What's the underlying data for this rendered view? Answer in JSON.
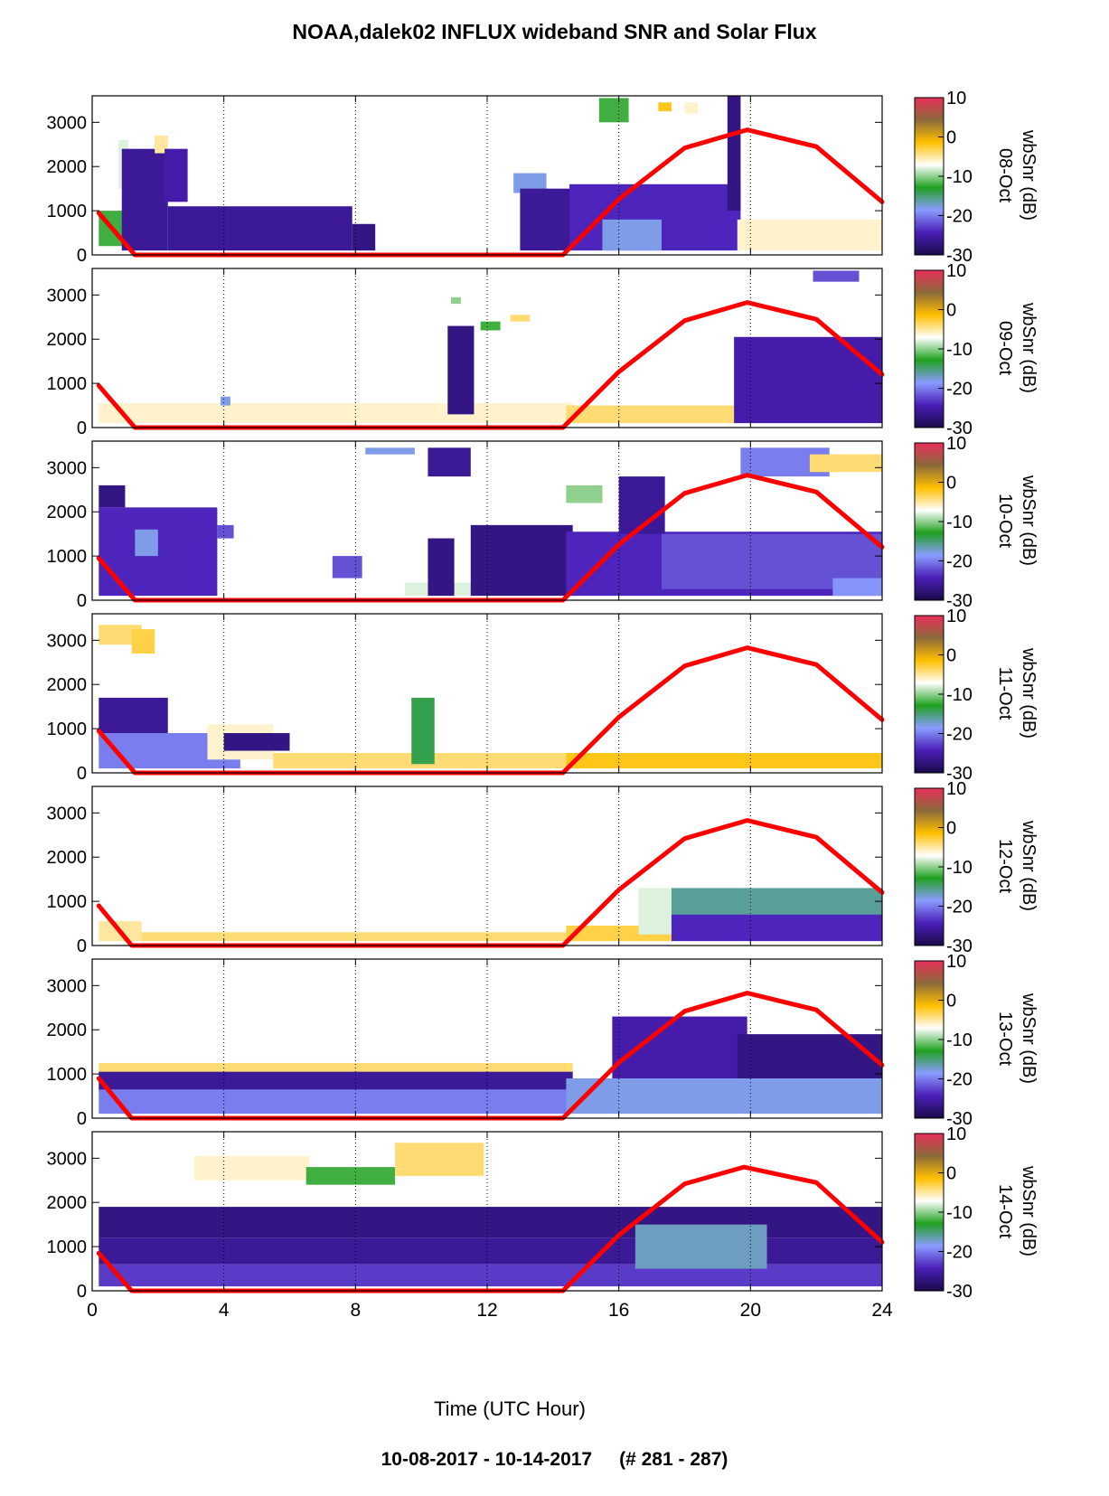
{
  "title": "NOAA,dalek02 INFLUX wideband SNR and Solar Flux",
  "footer": {
    "date_range": "10-08-2017 - 10-14-2017",
    "record_range": "(# 281 - 287)"
  },
  "chart_data": {
    "type": "heatmap",
    "xlabel": "Time (UTC Hour)",
    "xlim": [
      0,
      24
    ],
    "x_ticks": [
      0,
      4,
      8,
      12,
      16,
      20,
      24
    ],
    "y_ticks": [
      0,
      1000,
      2000,
      3000
    ],
    "ylim": [
      0,
      3600
    ],
    "grid": "dotted vertical at 4,8,12,16,20",
    "colorbar": {
      "label": "wbSnr (dB)",
      "range": [
        -30,
        10
      ],
      "ticks": [
        10,
        0,
        -10,
        -20,
        -30
      ],
      "colors": [
        "#1a0a4a",
        "#4b1fb8",
        "#8a9cff",
        "#1fa01f",
        "#ffffff",
        "#ffc000",
        "#8b6a3a",
        "#e8305a"
      ]
    },
    "solar_flux_color": "#ff0000",
    "panels": [
      {
        "label": "08-Oct",
        "solar_flux": [
          [
            0.2,
            950
          ],
          [
            1.3,
            0
          ],
          [
            14.3,
            0
          ],
          [
            16,
            1260
          ],
          [
            18,
            2420
          ],
          [
            19.9,
            2830
          ],
          [
            22,
            2450
          ],
          [
            24,
            1200
          ]
        ],
        "snr_regions": [
          {
            "x": [
              0.2,
              1.0
            ],
            "y": [
              200,
              1000
            ],
            "snr": -12
          },
          {
            "x": [
              0.8,
              1.1
            ],
            "y": [
              1500,
              2600
            ],
            "snr": -8
          },
          {
            "x": [
              0.9,
              2.3
            ],
            "y": [
              100,
              2400
            ],
            "snr": -26
          },
          {
            "x": [
              1.9,
              2.3
            ],
            "y": [
              2300,
              2700
            ],
            "snr": -5
          },
          {
            "x": [
              2.2,
              2.9
            ],
            "y": [
              1200,
              2400
            ],
            "snr": -25
          },
          {
            "x": [
              2.3,
              7.9
            ],
            "y": [
              100,
              1100
            ],
            "snr": -26
          },
          {
            "x": [
              7.9,
              8.6
            ],
            "y": [
              100,
              700
            ],
            "snr": -27
          },
          {
            "x": [
              12.8,
              13.8
            ],
            "y": [
              1400,
              1850
            ],
            "snr": -18
          },
          {
            "x": [
              13.0,
              14.6
            ],
            "y": [
              100,
              1500
            ],
            "snr": -26
          },
          {
            "x": [
              14.5,
              19.7
            ],
            "y": [
              100,
              1600
            ],
            "snr": -24
          },
          {
            "x": [
              15.5,
              17.3
            ],
            "y": [
              100,
              800
            ],
            "snr": -18
          },
          {
            "x": [
              15.4,
              16.3
            ],
            "y": [
              3000,
              3550
            ],
            "snr": -12
          },
          {
            "x": [
              17.2,
              17.6
            ],
            "y": [
              3250,
              3450
            ],
            "snr": -2
          },
          {
            "x": [
              18.0,
              18.4
            ],
            "y": [
              3200,
              3450
            ],
            "snr": -6
          },
          {
            "x": [
              19.3,
              19.7
            ],
            "y": [
              1000,
              3600
            ],
            "snr": -27
          },
          {
            "x": [
              19.6,
              24
            ],
            "y": [
              100,
              800
            ],
            "snr": -6
          }
        ]
      },
      {
        "label": "09-Oct",
        "solar_flux": [
          [
            0.2,
            950
          ],
          [
            1.3,
            0
          ],
          [
            14.3,
            0
          ],
          [
            16,
            1260
          ],
          [
            18,
            2420
          ],
          [
            19.9,
            2830
          ],
          [
            22,
            2450
          ],
          [
            24,
            1200
          ]
        ],
        "snr_regions": [
          {
            "x": [
              0.2,
              14.6
            ],
            "y": [
              100,
              550
            ],
            "snr": -6
          },
          {
            "x": [
              3.9,
              4.2
            ],
            "y": [
              500,
              700
            ],
            "snr": -18
          },
          {
            "x": [
              10.8,
              11.6
            ],
            "y": [
              300,
              2300
            ],
            "snr": -27
          },
          {
            "x": [
              10.9,
              11.2
            ],
            "y": [
              2800,
              2950
            ],
            "snr": -10
          },
          {
            "x": [
              11.8,
              12.4
            ],
            "y": [
              2200,
              2400
            ],
            "snr": -12
          },
          {
            "x": [
              12.7,
              13.3
            ],
            "y": [
              2400,
              2550
            ],
            "snr": -4
          },
          {
            "x": [
              14.4,
              19.6
            ],
            "y": [
              100,
              500
            ],
            "snr": -4
          },
          {
            "x": [
              19.5,
              24
            ],
            "y": [
              100,
              2050
            ],
            "snr": -25
          },
          {
            "x": [
              21.9,
              23.3
            ],
            "y": [
              3300,
              3550
            ],
            "snr": -22
          }
        ]
      },
      {
        "label": "10-Oct",
        "solar_flux": [
          [
            0.2,
            950
          ],
          [
            1.3,
            0
          ],
          [
            14.3,
            0
          ],
          [
            16,
            1260
          ],
          [
            18,
            2420
          ],
          [
            19.9,
            2830
          ],
          [
            22,
            2450
          ],
          [
            24,
            1200
          ]
        ],
        "snr_regions": [
          {
            "x": [
              0.2,
              3.8
            ],
            "y": [
              100,
              2100
            ],
            "snr": -24
          },
          {
            "x": [
              0.2,
              1.0
            ],
            "y": [
              2100,
              2600
            ],
            "snr": -27
          },
          {
            "x": [
              1.3,
              2.0
            ],
            "y": [
              1000,
              1600
            ],
            "snr": -18
          },
          {
            "x": [
              3.8,
              4.3
            ],
            "y": [
              1400,
              1700
            ],
            "snr": -22
          },
          {
            "x": [
              7.3,
              8.2
            ],
            "y": [
              500,
              1000
            ],
            "snr": -22
          },
          {
            "x": [
              9.5,
              13.9
            ],
            "y": [
              100,
              400
            ],
            "snr": -8
          },
          {
            "x": [
              10.2,
              11.0
            ],
            "y": [
              100,
              1400
            ],
            "snr": -27
          },
          {
            "x": [
              10.2,
              11.5
            ],
            "y": [
              2800,
              3450
            ],
            "snr": -26
          },
          {
            "x": [
              11.5,
              14.6
            ],
            "y": [
              100,
              1700
            ],
            "snr": -27
          },
          {
            "x": [
              8.3,
              9.8
            ],
            "y": [
              3300,
              3450
            ],
            "snr": -18
          },
          {
            "x": [
              14.4,
              24
            ],
            "y": [
              100,
              1550
            ],
            "snr": -24
          },
          {
            "x": [
              14.4,
              15.5
            ],
            "y": [
              2200,
              2600
            ],
            "snr": -10
          },
          {
            "x": [
              16.0,
              17.4
            ],
            "y": [
              1500,
              2800
            ],
            "snr": -26
          },
          {
            "x": [
              17.3,
              24
            ],
            "y": [
              250,
              1500
            ],
            "snr": -22
          },
          {
            "x": [
              19.7,
              22.4
            ],
            "y": [
              2800,
              3450
            ],
            "snr": -20
          },
          {
            "x": [
              21.8,
              24
            ],
            "y": [
              2900,
              3300
            ],
            "snr": -4
          },
          {
            "x": [
              22.5,
              24
            ],
            "y": [
              100,
              500
            ],
            "snr": -19
          }
        ]
      },
      {
        "label": "11-Oct",
        "solar_flux": [
          [
            0.2,
            950
          ],
          [
            1.3,
            0
          ],
          [
            14.3,
            0
          ],
          [
            16,
            1260
          ],
          [
            18,
            2420
          ],
          [
            19.9,
            2830
          ],
          [
            22,
            2450
          ],
          [
            24,
            1200
          ]
        ],
        "snr_regions": [
          {
            "x": [
              0.2,
              1.5
            ],
            "y": [
              2900,
              3350
            ],
            "snr": -4
          },
          {
            "x": [
              1.2,
              1.9
            ],
            "y": [
              2700,
              3250
            ],
            "snr": -3
          },
          {
            "x": [
              0.2,
              2.3
            ],
            "y": [
              700,
              1700
            ],
            "snr": -26
          },
          {
            "x": [
              0.2,
              4.5
            ],
            "y": [
              100,
              900
            ],
            "snr": -20
          },
          {
            "x": [
              3.5,
              5.5
            ],
            "y": [
              300,
              1100
            ],
            "snr": -6
          },
          {
            "x": [
              4.0,
              6.0
            ],
            "y": [
              500,
              900
            ],
            "snr": -27
          },
          {
            "x": [
              5.5,
              14.5
            ],
            "y": [
              100,
              450
            ],
            "snr": -4
          },
          {
            "x": [
              9.7,
              10.4
            ],
            "y": [
              200,
              1700
            ],
            "snr": -14
          },
          {
            "x": [
              14.4,
              24
            ],
            "y": [
              100,
              450
            ],
            "snr": -2
          }
        ]
      },
      {
        "label": "12-Oct",
        "solar_flux": [
          [
            0.2,
            900
          ],
          [
            1.2,
            0
          ],
          [
            14.3,
            0
          ],
          [
            16,
            1260
          ],
          [
            18,
            2420
          ],
          [
            19.9,
            2830
          ],
          [
            22,
            2450
          ],
          [
            24,
            1200
          ]
        ],
        "snr_regions": [
          {
            "x": [
              0.2,
              1.5
            ],
            "y": [
              100,
              550
            ],
            "snr": -5
          },
          {
            "x": [
              1.5,
              14.5
            ],
            "y": [
              100,
              300
            ],
            "snr": -4
          },
          {
            "x": [
              14.4,
              17.6
            ],
            "y": [
              100,
              450
            ],
            "snr": -3
          },
          {
            "x": [
              16.6,
              20.2
            ],
            "y": [
              250,
              1300
            ],
            "snr": -8
          },
          {
            "x": [
              17.6,
              24
            ],
            "y": [
              500,
              1300
            ],
            "snr": -16
          },
          {
            "x": [
              17.6,
              24
            ],
            "y": [
              100,
              700
            ],
            "snr": -24
          }
        ]
      },
      {
        "label": "13-Oct",
        "solar_flux": [
          [
            0.2,
            900
          ],
          [
            1.2,
            0
          ],
          [
            14.3,
            0
          ],
          [
            16,
            1260
          ],
          [
            18,
            2420
          ],
          [
            19.9,
            2830
          ],
          [
            22,
            2450
          ],
          [
            24,
            1200
          ]
        ],
        "snr_regions": [
          {
            "x": [
              0.2,
              14.6
            ],
            "y": [
              1000,
              1250
            ],
            "snr": -4
          },
          {
            "x": [
              0.2,
              14.6
            ],
            "y": [
              600,
              1050
            ],
            "snr": -26
          },
          {
            "x": [
              0.2,
              14.6
            ],
            "y": [
              100,
              650
            ],
            "snr": -20
          },
          {
            "x": [
              14.4,
              24
            ],
            "y": [
              100,
              900
            ],
            "snr": -18
          },
          {
            "x": [
              15.8,
              19.9
            ],
            "y": [
              900,
              2300
            ],
            "snr": -25
          },
          {
            "x": [
              19.6,
              24
            ],
            "y": [
              900,
              1900
            ],
            "snr": -27
          }
        ]
      },
      {
        "label": "14-Oct",
        "solar_flux": [
          [
            0.2,
            850
          ],
          [
            1.2,
            0
          ],
          [
            14.3,
            0
          ],
          [
            16,
            1260
          ],
          [
            18,
            2420
          ],
          [
            19.8,
            2800
          ],
          [
            22,
            2450
          ],
          [
            24,
            1100
          ]
        ],
        "snr_regions": [
          {
            "x": [
              0.2,
              24
            ],
            "y": [
              1200,
              1900
            ],
            "snr": -27
          },
          {
            "x": [
              0.2,
              24
            ],
            "y": [
              600,
              1200
            ],
            "snr": -26
          },
          {
            "x": [
              0.2,
              24
            ],
            "y": [
              100,
              600
            ],
            "snr": -23
          },
          {
            "x": [
              16.5,
              20.5
            ],
            "y": [
              500,
              1500
            ],
            "snr": -17
          },
          {
            "x": [
              3.1,
              6.6
            ],
            "y": [
              2500,
              3050
            ],
            "snr": -6
          },
          {
            "x": [
              6.5,
              9.2
            ],
            "y": [
              2400,
              2800
            ],
            "snr": -12
          },
          {
            "x": [
              9.2,
              11.9
            ],
            "y": [
              2600,
              3350
            ],
            "snr": -4
          }
        ]
      }
    ]
  }
}
